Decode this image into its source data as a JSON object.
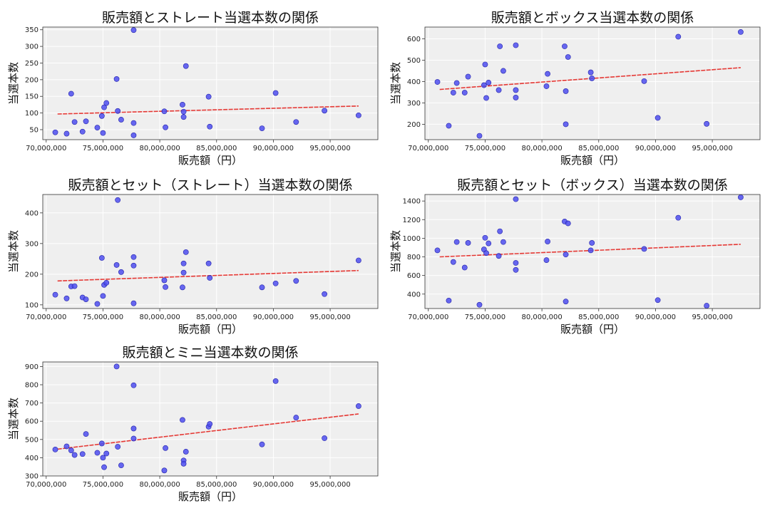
{
  "chart_data": [
    {
      "type": "scatter",
      "title": "販売額とストレート当選本数の関係",
      "xlabel": "販売額（円）",
      "ylabel": "当選本数",
      "xlim": [
        69700000,
        99200000
      ],
      "ylim": [
        20,
        358
      ],
      "xticks": [
        70000000,
        75000000,
        80000000,
        85000000,
        90000000,
        95000000
      ],
      "xtick_labels": [
        "70,000,000",
        "75,000,000",
        "80,000,000",
        "85,000,000",
        "90,000,000",
        "95,000,000"
      ],
      "yticks": [
        50,
        100,
        150,
        200,
        250,
        300,
        350
      ],
      "ytick_labels": [
        "50",
        "100",
        "150",
        "200",
        "250",
        "300",
        "350"
      ],
      "grid": true,
      "trend": [
        [
          71000000,
          97
        ],
        [
          97500000,
          121
        ]
      ],
      "points": [
        [
          70800000,
          42
        ],
        [
          71800000,
          38
        ],
        [
          72200000,
          158
        ],
        [
          72500000,
          73
        ],
        [
          73200000,
          44
        ],
        [
          73500000,
          75
        ],
        [
          74500000,
          56
        ],
        [
          74900000,
          91
        ],
        [
          75000000,
          40
        ],
        [
          75100000,
          117
        ],
        [
          75300000,
          130
        ],
        [
          76200000,
          202
        ],
        [
          76300000,
          106
        ],
        [
          76600000,
          80
        ],
        [
          77700000,
          349
        ],
        [
          77700000,
          70
        ],
        [
          77700000,
          33
        ],
        [
          80400000,
          105
        ],
        [
          80500000,
          57
        ],
        [
          82000000,
          125
        ],
        [
          82100000,
          104
        ],
        [
          82100000,
          88
        ],
        [
          82300000,
          241
        ],
        [
          84300000,
          149
        ],
        [
          84400000,
          59
        ],
        [
          89000000,
          54
        ],
        [
          90200000,
          160
        ],
        [
          92000000,
          73
        ],
        [
          94500000,
          107
        ],
        [
          97500000,
          93
        ]
      ]
    },
    {
      "type": "scatter",
      "title": "販売額とボックス当選本数の関係",
      "xlabel": "販売額（円）",
      "ylabel": "当選本数",
      "xlim": [
        69700000,
        99200000
      ],
      "ylim": [
        128,
        655
      ],
      "xticks": [
        70000000,
        75000000,
        80000000,
        85000000,
        90000000,
        95000000
      ],
      "xtick_labels": [
        "70,000,000",
        "75,000,000",
        "80,000,000",
        "85,000,000",
        "90,000,000",
        "95,000,000"
      ],
      "yticks": [
        200,
        300,
        400,
        500,
        600
      ],
      "ytick_labels": [
        "200",
        "300",
        "400",
        "500",
        "600"
      ],
      "grid": true,
      "trend": [
        [
          71000000,
          363
        ],
        [
          97500000,
          465
        ]
      ],
      "points": [
        [
          70800000,
          398
        ],
        [
          71800000,
          193
        ],
        [
          72200000,
          348
        ],
        [
          72500000,
          393
        ],
        [
          73200000,
          348
        ],
        [
          73500000,
          423
        ],
        [
          74500000,
          146
        ],
        [
          74900000,
          383
        ],
        [
          75000000,
          480
        ],
        [
          75100000,
          323
        ],
        [
          75300000,
          395
        ],
        [
          76200000,
          360
        ],
        [
          76300000,
          565
        ],
        [
          76600000,
          450
        ],
        [
          77700000,
          570
        ],
        [
          77700000,
          360
        ],
        [
          77700000,
          325
        ],
        [
          80400000,
          378
        ],
        [
          80500000,
          436
        ],
        [
          82000000,
          565
        ],
        [
          82100000,
          355
        ],
        [
          82100000,
          200
        ],
        [
          82300000,
          515
        ],
        [
          84300000,
          443
        ],
        [
          84400000,
          415
        ],
        [
          89000000,
          402
        ],
        [
          90200000,
          230
        ],
        [
          92000000,
          610
        ],
        [
          94500000,
          202
        ],
        [
          97500000,
          632
        ]
      ]
    },
    {
      "type": "scatter",
      "title": "販売額とセット（ストレート）当選本数の関係",
      "xlabel": "販売額（円）",
      "ylabel": "当選本数",
      "xlim": [
        69700000,
        99200000
      ],
      "ylim": [
        88,
        460
      ],
      "xticks": [
        70000000,
        75000000,
        80000000,
        85000000,
        90000000,
        95000000
      ],
      "xtick_labels": [
        "70,000,000",
        "75,000,000",
        "80,000,000",
        "85,000,000",
        "90,000,000",
        "95,000,000"
      ],
      "yticks": [
        100,
        200,
        300,
        400
      ],
      "ytick_labels": [
        "100",
        "200",
        "300",
        "400"
      ],
      "grid": true,
      "trend": [
        [
          71000000,
          178
        ],
        [
          97500000,
          212
        ]
      ],
      "points": [
        [
          70800000,
          133
        ],
        [
          71800000,
          121
        ],
        [
          72200000,
          160
        ],
        [
          72500000,
          161
        ],
        [
          73200000,
          124
        ],
        [
          73500000,
          118
        ],
        [
          74500000,
          103
        ],
        [
          74900000,
          253
        ],
        [
          75000000,
          129
        ],
        [
          75100000,
          165
        ],
        [
          75300000,
          172
        ],
        [
          76200000,
          230
        ],
        [
          76300000,
          442
        ],
        [
          76600000,
          207
        ],
        [
          77700000,
          256
        ],
        [
          77700000,
          228
        ],
        [
          77700000,
          105
        ],
        [
          80400000,
          180
        ],
        [
          80500000,
          158
        ],
        [
          82000000,
          157
        ],
        [
          82100000,
          205
        ],
        [
          82100000,
          235
        ],
        [
          82300000,
          272
        ],
        [
          84300000,
          235
        ],
        [
          84400000,
          188
        ],
        [
          89000000,
          157
        ],
        [
          90200000,
          170
        ],
        [
          92000000,
          178
        ],
        [
          94500000,
          135
        ],
        [
          97500000,
          245
        ]
      ]
    },
    {
      "type": "scatter",
      "title": "販売額とセット（ボックス）当選本数の関係",
      "xlabel": "販売額（円）",
      "ylabel": "当選本数",
      "xlim": [
        69700000,
        99200000
      ],
      "ylim": [
        245,
        1470
      ],
      "xticks": [
        70000000,
        75000000,
        80000000,
        85000000,
        90000000,
        95000000
      ],
      "xtick_labels": [
        "70,000,000",
        "75,000,000",
        "80,000,000",
        "85,000,000",
        "90,000,000",
        "95,000,000"
      ],
      "yticks": [
        400,
        600,
        800,
        1000,
        1200,
        1400
      ],
      "ytick_labels": [
        "400",
        "600",
        "800",
        "1000",
        "1200",
        "1400"
      ],
      "grid": true,
      "trend": [
        [
          71000000,
          800
        ],
        [
          97500000,
          935
        ]
      ],
      "points": [
        [
          70800000,
          870
        ],
        [
          71800000,
          330
        ],
        [
          72200000,
          745
        ],
        [
          72500000,
          960
        ],
        [
          73200000,
          685
        ],
        [
          73500000,
          950
        ],
        [
          74500000,
          285
        ],
        [
          74900000,
          880
        ],
        [
          75000000,
          1005
        ],
        [
          75100000,
          840
        ],
        [
          75300000,
          945
        ],
        [
          76200000,
          810
        ],
        [
          76300000,
          1075
        ],
        [
          76600000,
          960
        ],
        [
          77700000,
          1420
        ],
        [
          77700000,
          735
        ],
        [
          77700000,
          660
        ],
        [
          80400000,
          765
        ],
        [
          80500000,
          965
        ],
        [
          82000000,
          1180
        ],
        [
          82100000,
          825
        ],
        [
          82100000,
          320
        ],
        [
          82300000,
          1160
        ],
        [
          84300000,
          870
        ],
        [
          84400000,
          950
        ],
        [
          89000000,
          885
        ],
        [
          90200000,
          335
        ],
        [
          92000000,
          1220
        ],
        [
          94500000,
          275
        ],
        [
          97500000,
          1440
        ]
      ]
    },
    {
      "type": "scatter",
      "title": "販売額とミニ当選本数の関係",
      "xlabel": "販売額（円）",
      "ylabel": "当選本数",
      "xlim": [
        69700000,
        99200000
      ],
      "ylim": [
        300,
        925
      ],
      "xticks": [
        70000000,
        75000000,
        80000000,
        85000000,
        90000000,
        95000000
      ],
      "xtick_labels": [
        "70,000,000",
        "75,000,000",
        "80,000,000",
        "85,000,000",
        "90,000,000",
        "95,000,000"
      ],
      "yticks": [
        300,
        400,
        500,
        600,
        700,
        800,
        900
      ],
      "ytick_labels": [
        "300",
        "400",
        "500",
        "600",
        "700",
        "800",
        "900"
      ],
      "grid": true,
      "trend": [
        [
          71000000,
          447
        ],
        [
          97500000,
          640
        ]
      ],
      "points": [
        [
          70800000,
          445
        ],
        [
          71800000,
          462
        ],
        [
          72200000,
          440
        ],
        [
          72500000,
          415
        ],
        [
          73200000,
          420
        ],
        [
          73500000,
          530
        ],
        [
          74500000,
          427
        ],
        [
          74900000,
          478
        ],
        [
          75000000,
          400
        ],
        [
          75100000,
          348
        ],
        [
          75300000,
          423
        ],
        [
          76200000,
          900
        ],
        [
          76300000,
          460
        ],
        [
          76600000,
          358
        ],
        [
          77700000,
          797
        ],
        [
          77700000,
          560
        ],
        [
          77700000,
          505
        ],
        [
          80400000,
          330
        ],
        [
          80500000,
          453
        ],
        [
          82000000,
          607
        ],
        [
          82100000,
          385
        ],
        [
          82100000,
          367
        ],
        [
          82300000,
          433
        ],
        [
          84300000,
          570
        ],
        [
          84400000,
          585
        ],
        [
          89000000,
          473
        ],
        [
          90200000,
          820
        ],
        [
          92000000,
          620
        ],
        [
          94500000,
          507
        ],
        [
          97500000,
          683
        ]
      ]
    }
  ],
  "colors": {
    "point_fill": "#4d4dee",
    "point_edge": "#2222aa",
    "trend_line": "#e53935",
    "axes_bg": "#efefef",
    "grid": "#ffffff"
  }
}
